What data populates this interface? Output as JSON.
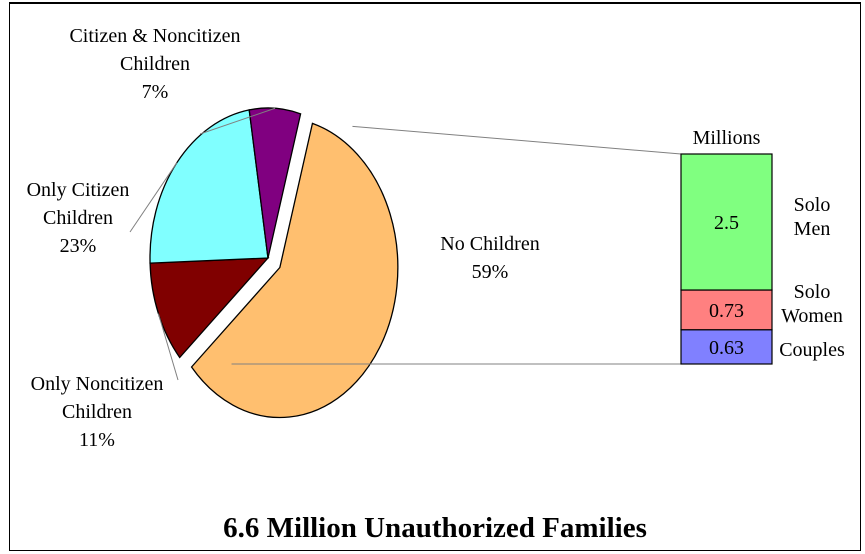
{
  "chart_data": [
    {
      "type": "pie",
      "slices": [
        {
          "name": "No Children",
          "value": 59,
          "pct_label": "59%",
          "color": "#ffbf6f",
          "exploded": true
        },
        {
          "name": "Only Noncitizen Children",
          "lines": [
            "Only Noncitizen",
            "Children"
          ],
          "value": 11,
          "pct_label": "11%",
          "color": "#800000"
        },
        {
          "name": "Only Citizen Children",
          "lines": [
            "Only Citizen",
            "Children"
          ],
          "value": 23,
          "pct_label": "23%",
          "color": "#80ffff"
        },
        {
          "name": "Citizen & Noncitizen Children",
          "lines": [
            "Citizen & Noncitizen",
            "Children"
          ],
          "value": 7,
          "pct_label": "7%",
          "color": "#800080"
        }
      ]
    },
    {
      "type": "bar",
      "stacked": true,
      "unit_label": "Millions",
      "segments": [
        {
          "name": "Couples",
          "lines": [
            "Couples"
          ],
          "value": 0.63,
          "value_label": "0.63",
          "color": "#8080ff"
        },
        {
          "name": "Solo Women",
          "lines": [
            "Solo",
            "Women"
          ],
          "value": 0.73,
          "value_label": "0.73",
          "color": "#ff8080"
        },
        {
          "name": "Solo Men",
          "lines": [
            "Solo",
            "Men"
          ],
          "value": 2.5,
          "value_label": "2.5",
          "color": "#80ff80"
        }
      ]
    }
  ],
  "title": "6.6 Million Unauthorized Families"
}
